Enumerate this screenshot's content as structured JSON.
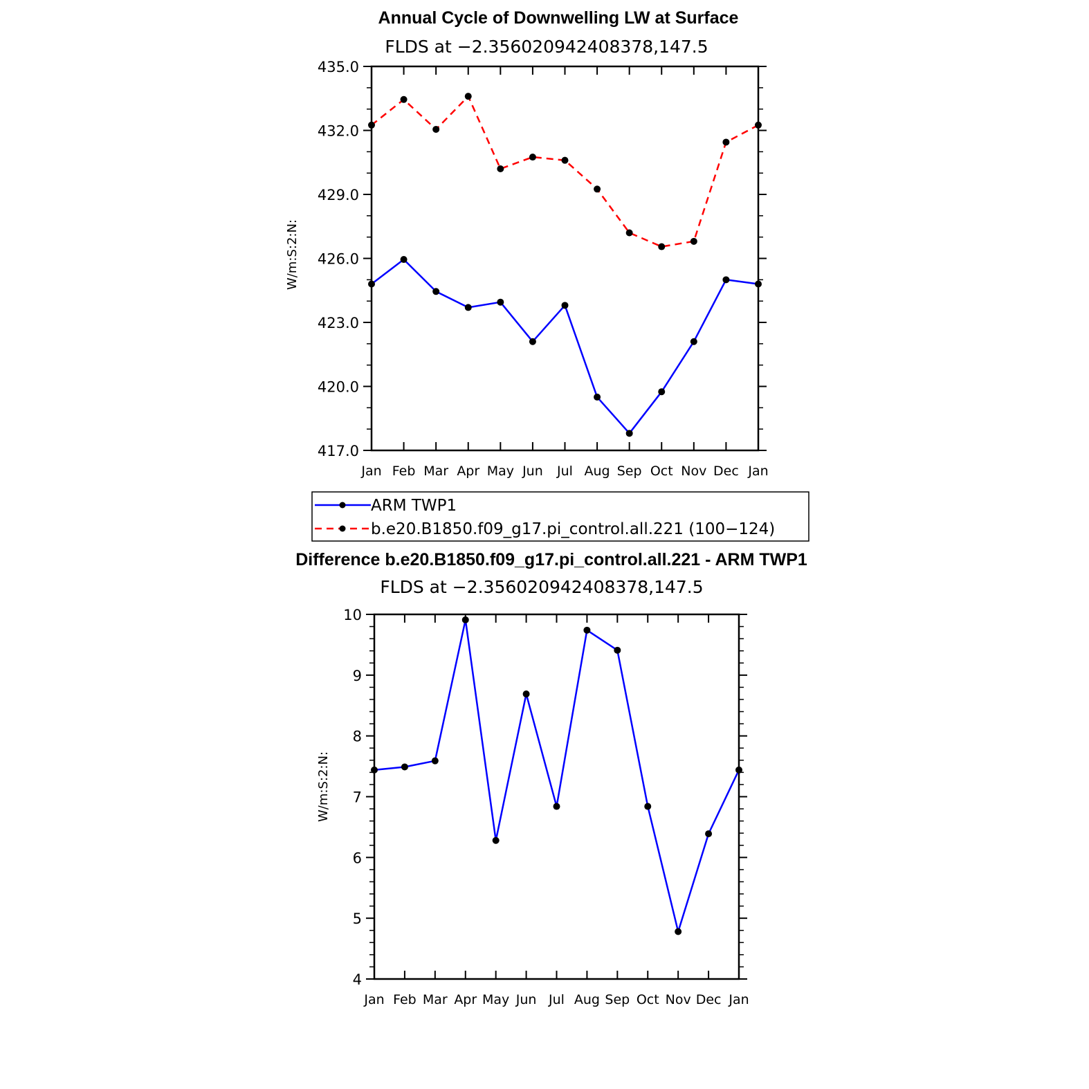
{
  "chart_data": [
    {
      "type": "line",
      "title": "Annual Cycle of Downwelling LW at Surface",
      "subtitle": "FLDS at −2.356020942408378,147.5",
      "ylabel": "W/m:S:2:N:",
      "ylim": [
        417,
        435
      ],
      "yticks": [
        "417.0",
        "420.0",
        "423.0",
        "426.0",
        "429.0",
        "432.0",
        "435.0"
      ],
      "categories": [
        "Jan",
        "Feb",
        "Mar",
        "Apr",
        "May",
        "Jun",
        "Jul",
        "Aug",
        "Sep",
        "Oct",
        "Nov",
        "Dec",
        "Jan"
      ],
      "series": [
        {
          "name": "ARM TWP1",
          "color": "#0000ff",
          "dash": "solid",
          "values": [
            424.8,
            425.95,
            424.45,
            423.7,
            423.95,
            422.1,
            423.8,
            419.5,
            417.8,
            419.75,
            422.1,
            425.0,
            424.8
          ]
        },
        {
          "name": "b.e20.B1850.f09_g17.pi_control.all.221 (100−124)",
          "color": "#ff0000",
          "dash": "dashed",
          "values": [
            432.25,
            433.45,
            432.05,
            433.6,
            430.2,
            430.75,
            430.6,
            429.25,
            427.2,
            426.55,
            426.8,
            431.45,
            432.25
          ]
        }
      ],
      "legend": "below"
    },
    {
      "type": "line",
      "title": "Difference b.e20.B1850.f09_g17.pi_control.all.221 - ARM TWP1",
      "subtitle": "FLDS at −2.356020942408378,147.5",
      "ylabel": "W/m:S:2:N:",
      "ylim": [
        4,
        10
      ],
      "yticks": [
        "4",
        "5",
        "6",
        "7",
        "8",
        "9",
        "10"
      ],
      "categories": [
        "Jan",
        "Feb",
        "Mar",
        "Apr",
        "May",
        "Jun",
        "Jul",
        "Aug",
        "Sep",
        "Oct",
        "Nov",
        "Dec",
        "Jan"
      ],
      "series": [
        {
          "color": "#0000ff",
          "dash": "solid",
          "values": [
            7.44,
            7.49,
            7.59,
            9.91,
            6.28,
            8.69,
            6.84,
            9.74,
            9.41,
            6.84,
            4.78,
            6.39,
            7.44
          ]
        }
      ]
    }
  ]
}
